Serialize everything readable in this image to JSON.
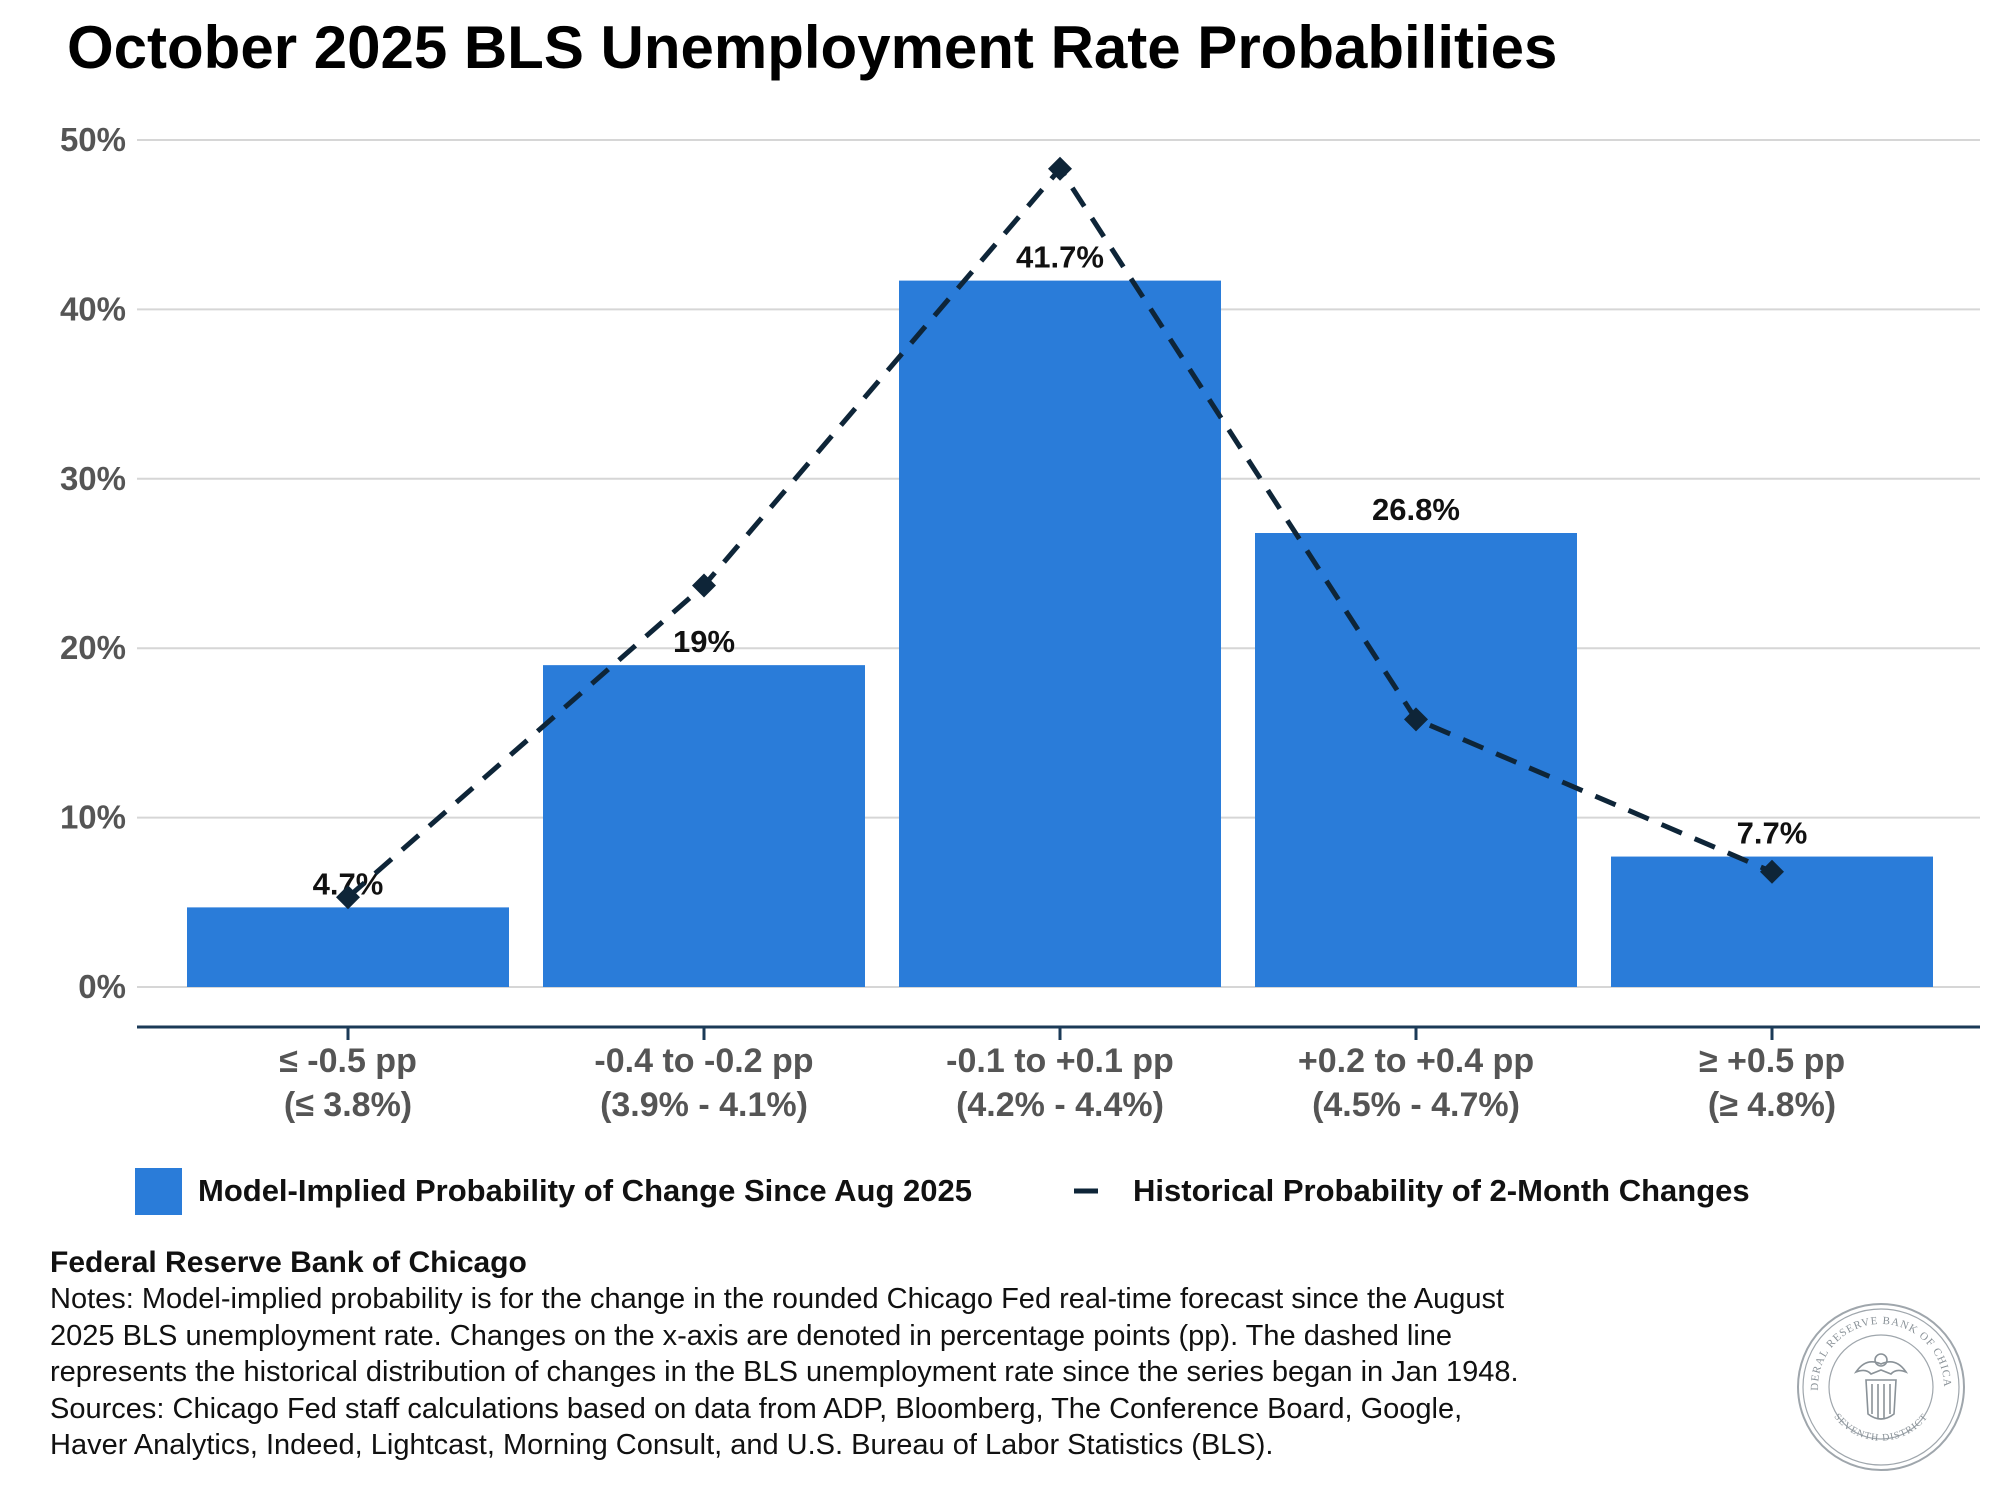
{
  "chart_data": {
    "type": "bar",
    "title": "October 2025 BLS Unemployment Rate Probabilities",
    "xlabel": "",
    "ylabel": "",
    "ylim": [
      0,
      50
    ],
    "yticks": [
      "0%",
      "10%",
      "20%",
      "30%",
      "40%",
      "50%"
    ],
    "grid": true,
    "legend_position": "bottom",
    "categories": [
      [
        "≤ -0.5 pp",
        "(≤ 3.8%)"
      ],
      [
        "-0.4 to -0.2 pp",
        "(3.9% - 4.1%)"
      ],
      [
        "-0.1 to +0.1 pp",
        "(4.2% - 4.4%)"
      ],
      [
        "+0.2 to +0.4 pp",
        "(4.5% - 4.7%)"
      ],
      [
        "≥ +0.5 pp",
        "(≥ 4.8%)"
      ]
    ],
    "series": [
      {
        "name": "Model-Implied Probability of Change Since Aug 2025",
        "kind": "bar",
        "color": "#2a7cd9",
        "values": [
          4.7,
          19,
          41.7,
          26.8,
          7.7
        ],
        "labels": [
          "4.7%",
          "19%",
          "41.7%",
          "26.8%",
          "7.7%"
        ]
      },
      {
        "name": "Historical Probability of 2-Month Changes",
        "kind": "line",
        "style": "dashed",
        "marker": "diamond",
        "color": "#0e2538",
        "values": [
          5.3,
          23.7,
          48.3,
          15.8,
          6.8
        ]
      }
    ]
  },
  "footer": {
    "org": "Federal Reserve Bank of Chicago",
    "notes": [
      "Notes: Model-implied probability is for the change in the rounded Chicago Fed real-time forecast since the August",
      "2025 BLS unemployment rate. Changes on the x-axis are denoted in percentage points (pp). The dashed line",
      "represents the historical distribution of changes in the BLS unemployment rate since the series began in Jan 1948.",
      "Sources: Chicago Fed staff calculations based on data from ADP, Bloomberg, The Conference Board, Google,",
      "Haver Analytics, Indeed, Lightcast, Morning Consult, and U.S. Bureau of Labor Statistics (BLS)."
    ],
    "seal_text": [
      "FEDERAL RESERVE BANK OF CHICAGO",
      "SEVENTH DISTRICT"
    ]
  }
}
